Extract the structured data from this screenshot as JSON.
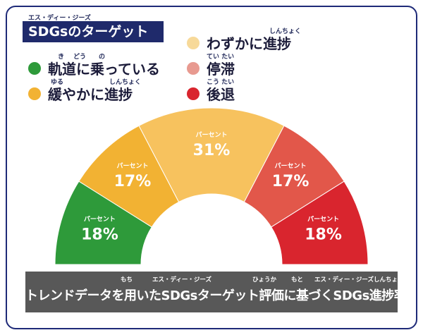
{
  "title": {
    "ruby": "エス・ディー・ジーズ",
    "text": "SDGsのターゲット"
  },
  "legend": [
    {
      "label": "軌道に乗っている",
      "ruby": [
        "き",
        "どう",
        "の"
      ],
      "color": "#2e9a3a"
    },
    {
      "label": "緩やかに進捗",
      "ruby": [
        "ゆる",
        "しんちょく"
      ],
      "color": "#f2b233"
    },
    {
      "label": "わずかに進捗",
      "ruby": [
        "しんちょく"
      ],
      "color": "#f7d999"
    },
    {
      "label": "停滞",
      "ruby": [
        "てい たい"
      ],
      "color": "#e89a90"
    },
    {
      "label": "後退",
      "ruby": [
        "こう たい"
      ],
      "color": "#d9252e"
    }
  ],
  "chart_data": {
    "type": "pie",
    "subtype": "semi-donut",
    "title": "トレンドデータを用いたSDGsターゲット評価に基づくSDGs進捗率",
    "categories": [
      "軌道に乗っている",
      "緩やかに進捗",
      "わずかに進捗",
      "停滞",
      "後退"
    ],
    "values": [
      18,
      17,
      31,
      17,
      18
    ],
    "unit": "%",
    "unit_ruby": "パーセント",
    "colors": [
      "#2e9a3a",
      "#f2b233",
      "#f7c25e",
      "#e2574a",
      "#d9252e"
    ]
  },
  "footer": {
    "text": "トレンドデータを用いたSDGsターゲット評価に基づくSDGs進捗率",
    "ruby": [
      "もち",
      "エス・ディー・ジーズ",
      "ひょうか",
      "もと",
      "エス・ディー・ジーズしんちょくりつ"
    ]
  }
}
